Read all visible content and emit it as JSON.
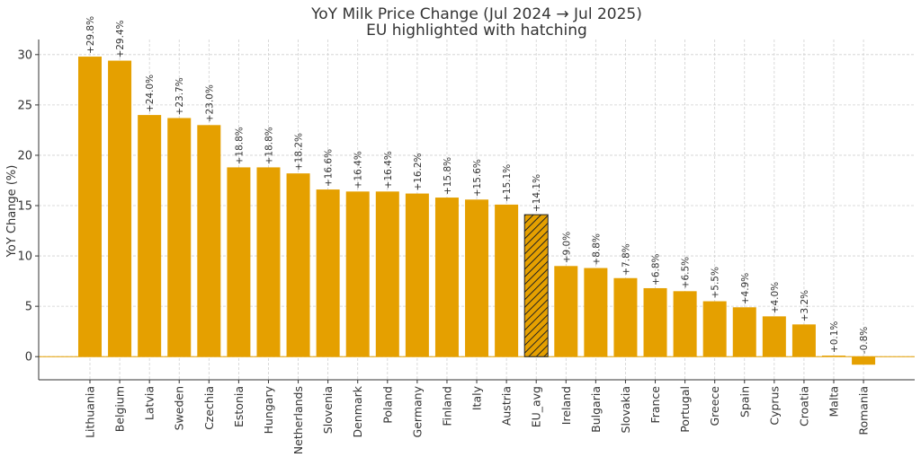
{
  "chart_data": {
    "type": "bar",
    "title": "YoY Milk Price Change (Jul 2024 → Jul 2025)",
    "subtitle": "EU highlighted with hatching",
    "ylabel": "YoY Change (%)",
    "xlabel": "",
    "ylim": [
      -2.3,
      31.5
    ],
    "yticks": [
      0,
      5,
      10,
      15,
      20,
      25,
      30
    ],
    "grid": true,
    "bar_color": "#e5a000",
    "highlight_category": "EU_avg",
    "highlight_style": "hatched",
    "zero_line_color": "#e5a000",
    "categories": [
      "Lithuania",
      "Belgium",
      "Latvia",
      "Sweden",
      "Czechia",
      "Estonia",
      "Hungary",
      "Netherlands",
      "Slovenia",
      "Denmark",
      "Poland",
      "Germany",
      "Finland",
      "Italy",
      "Austria",
      "EU_avg",
      "Ireland",
      "Bulgaria",
      "Slovakia",
      "France",
      "Portugal",
      "Greece",
      "Spain",
      "Cyprus",
      "Croatia",
      "Malta",
      "Romania"
    ],
    "values": [
      29.8,
      29.4,
      24.0,
      23.7,
      23.0,
      18.8,
      18.8,
      18.2,
      16.6,
      16.4,
      16.4,
      16.2,
      15.8,
      15.6,
      15.1,
      14.1,
      9.0,
      8.8,
      7.8,
      6.8,
      6.5,
      5.5,
      4.9,
      4.0,
      3.2,
      0.1,
      -0.8
    ],
    "data_labels": [
      "+29.8%",
      "+29.4%",
      "+24.0%",
      "+23.7%",
      "+23.0%",
      "+18.8%",
      "+18.8%",
      "+18.2%",
      "+16.6%",
      "+16.4%",
      "+16.4%",
      "+16.2%",
      "+15.8%",
      "+15.6%",
      "+15.1%",
      "+14.1%",
      "+9.0%",
      "+8.8%",
      "+7.8%",
      "+6.8%",
      "+6.5%",
      "+5.5%",
      "+4.9%",
      "+4.0%",
      "+3.2%",
      "+0.1%",
      "-0.8%"
    ]
  }
}
